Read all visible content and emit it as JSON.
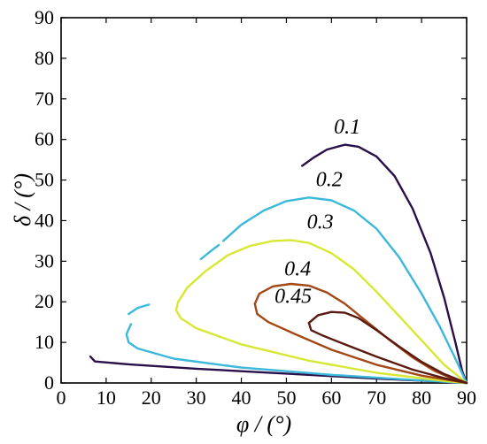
{
  "chart_data": {
    "type": "line",
    "title": "",
    "xlabel": "φ / (°)",
    "ylabel": "δ / (°)",
    "xlim": [
      0,
      90
    ],
    "ylim": [
      0,
      90
    ],
    "x_ticks": [
      "0",
      "10",
      "20",
      "30",
      "40",
      "50",
      "60",
      "70",
      "80",
      "90"
    ],
    "y_ticks": [
      "0",
      "10",
      "20",
      "30",
      "40",
      "50",
      "60",
      "70",
      "80",
      "90"
    ],
    "grid": false,
    "legend": "none",
    "series": [
      {
        "name": "0.1",
        "color": "#2a0f4a",
        "segments": [
          [
            [
              53.5,
              53.5
            ],
            [
              56,
              55.5
            ],
            [
              59,
              57.5
            ],
            [
              63,
              58.7
            ],
            [
              66,
              58.2
            ],
            [
              70,
              55.8
            ],
            [
              74,
              51
            ],
            [
              78,
              43
            ],
            [
              82,
              32
            ],
            [
              85,
              21
            ],
            [
              87.5,
              10
            ],
            [
              89,
              3
            ],
            [
              90,
              0
            ]
          ],
          [
            [
              6.5,
              6.5
            ],
            [
              7.5,
              5.3
            ],
            [
              15,
              4.6
            ],
            [
              30,
              3.5
            ],
            [
              50,
              2.3
            ],
            [
              70,
              1.1
            ],
            [
              85,
              0.3
            ],
            [
              90,
              0
            ]
          ]
        ]
      },
      {
        "name": "0.2",
        "color": "#3bb8dc",
        "segments": [
          [
            [
              15,
              17
            ],
            [
              17,
              18.5
            ],
            [
              19.5,
              19.3
            ]
          ],
          [
            [
              31,
              30.5
            ],
            [
              33,
              32.3
            ],
            [
              35,
              34
            ]
          ],
          [
            [
              36,
              35
            ],
            [
              40,
              39
            ],
            [
              45,
              42.5
            ],
            [
              50,
              44.8
            ],
            [
              55,
              45.7
            ],
            [
              60,
              45
            ],
            [
              65,
              42.5
            ],
            [
              70,
              38
            ],
            [
              75,
              31
            ],
            [
              80,
              22
            ],
            [
              84,
              14
            ],
            [
              87.5,
              6
            ],
            [
              90,
              0
            ]
          ],
          [
            [
              15.5,
              14.5
            ],
            [
              14.5,
              12
            ],
            [
              15,
              10
            ],
            [
              17,
              8.5
            ],
            [
              25,
              6
            ],
            [
              40,
              3.8
            ],
            [
              60,
              2
            ],
            [
              80,
              0.6
            ],
            [
              90,
              0
            ]
          ]
        ]
      },
      {
        "name": "0.3",
        "color": "#d6e832",
        "segments": [
          [
            [
              26,
              20
            ],
            [
              25.5,
              18
            ],
            [
              26.5,
              16
            ],
            [
              30,
              13.5
            ],
            [
              40,
              9.5
            ],
            [
              55,
              5.5
            ],
            [
              70,
              2.5
            ],
            [
              85,
              0.5
            ],
            [
              90,
              0
            ]
          ],
          [
            [
              26,
              20
            ],
            [
              28,
              23.5
            ],
            [
              32,
              27.5
            ],
            [
              37,
              31.5
            ],
            [
              42,
              33.8
            ],
            [
              47,
              35
            ],
            [
              51,
              35.2
            ],
            [
              55,
              34.5
            ],
            [
              60,
              32
            ],
            [
              65,
              28
            ],
            [
              70,
              22.5
            ],
            [
              75,
              16.5
            ],
            [
              80,
              10.5
            ],
            [
              85,
              4.5
            ],
            [
              90,
              0
            ]
          ]
        ]
      },
      {
        "name": "0.4",
        "color": "#a34814",
        "segments": [
          [
            [
              43,
              19.5
            ],
            [
              44,
              22
            ],
            [
              47,
              23.8
            ],
            [
              51,
              24.4
            ],
            [
              55,
              24
            ],
            [
              59,
              22.3
            ],
            [
              63,
              19.5
            ],
            [
              68,
              15
            ],
            [
              73,
              10.5
            ],
            [
              78,
              6.3
            ],
            [
              83,
              2.9
            ],
            [
              87,
              1
            ],
            [
              90,
              0
            ]
          ],
          [
            [
              43,
              19.5
            ],
            [
              43.5,
              17
            ],
            [
              46,
              15
            ],
            [
              52,
              12
            ],
            [
              60,
              8.2
            ],
            [
              70,
              4.5
            ],
            [
              80,
              1.8
            ],
            [
              90,
              0
            ]
          ]
        ]
      },
      {
        "name": "0.45",
        "color": "#5a1a10",
        "segments": [
          [
            [
              55,
              14.8
            ],
            [
              57,
              16.7
            ],
            [
              60,
              17.5
            ],
            [
              63,
              17.3
            ],
            [
              66,
              16
            ],
            [
              70,
              13
            ],
            [
              75,
              9
            ],
            [
              80,
              5.2
            ],
            [
              85,
              2.2
            ],
            [
              90,
              0
            ]
          ],
          [
            [
              55,
              14.8
            ],
            [
              55.5,
              13
            ],
            [
              58,
              11.7
            ],
            [
              63,
              9.5
            ],
            [
              70,
              6.5
            ],
            [
              78,
              3.3
            ],
            [
              85,
              1.2
            ],
            [
              90,
              0
            ]
          ]
        ]
      }
    ],
    "annotations": [
      {
        "text": "0.1",
        "x": 63.5,
        "y": 61.5
      },
      {
        "text": "0.2",
        "x": 59.5,
        "y": 48.5
      },
      {
        "text": "0.3",
        "x": 57.5,
        "y": 38
      },
      {
        "text": "0.4",
        "x": 52.5,
        "y": 26.5
      },
      {
        "text": "0.45",
        "x": 51.5,
        "y": 19.7
      }
    ]
  }
}
